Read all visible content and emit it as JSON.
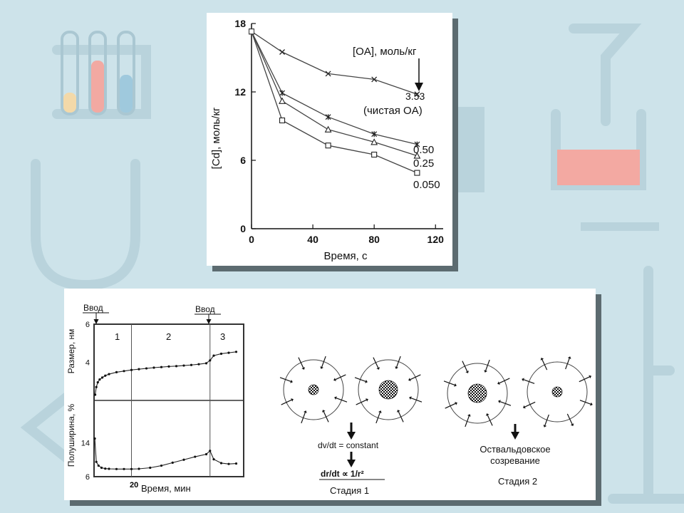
{
  "chart_data": [
    {
      "type": "line",
      "xlabel": "Время, с",
      "ylabel": "[Cd], моль/кг",
      "xlim": [
        0,
        125
      ],
      "ylim": [
        0,
        18
      ],
      "x_ticks": [
        "0",
        "40",
        "80",
        "120"
      ],
      "y_ticks": [
        "0",
        "6",
        "12",
        "18"
      ],
      "legend_title": "[OA], моль/кг",
      "series": [
        {
          "name": "3.53",
          "marker": "x",
          "x": [
            0,
            20,
            50,
            80,
            108
          ],
          "y": [
            17.3,
            15.5,
            13.6,
            13.1,
            11.8
          ]
        },
        {
          "name": "(чистая OA)",
          "marker": "none",
          "x": [],
          "y": []
        },
        {
          "name": "0.50",
          "marker": "star",
          "x": [
            0,
            20,
            50,
            80,
            108
          ],
          "y": [
            17.3,
            11.9,
            9.8,
            8.3,
            7.4
          ]
        },
        {
          "name": "0.25",
          "marker": "triangle",
          "x": [
            0,
            20,
            50,
            80,
            108
          ],
          "y": [
            17.3,
            11.2,
            8.7,
            7.6,
            6.4
          ]
        },
        {
          "name": "0.050",
          "marker": "square",
          "x": [
            0,
            20,
            50,
            80,
            108
          ],
          "y": [
            17.3,
            9.5,
            7.3,
            6.5,
            4.9
          ]
        }
      ]
    },
    {
      "type": "line",
      "xlabel": "Время, мин",
      "annotations": [
        "Ввод",
        "Ввод"
      ],
      "stages": [
        "1",
        "2",
        "3"
      ],
      "stage_bounds": [
        0,
        10,
        31,
        40
      ],
      "xlim": [
        0,
        40
      ],
      "subplots": [
        {
          "ylabel": "Размер, нм",
          "ylim": [
            2,
            6
          ],
          "y_ticks": [
            "6",
            "4"
          ],
          "series": [
            {
              "name": "",
              "x": [
                0.3,
                0.6,
                1,
                1.5,
                2.2,
                3,
                4,
                6,
                8,
                10,
                12,
                14,
                16,
                18,
                20,
                22,
                24,
                26,
                28,
                30,
                31,
                32,
                34,
                36,
                38
              ],
              "y": [
                2.3,
                2.7,
                2.95,
                3.1,
                3.2,
                3.3,
                3.38,
                3.48,
                3.54,
                3.6,
                3.64,
                3.68,
                3.72,
                3.75,
                3.78,
                3.8,
                3.83,
                3.86,
                3.9,
                3.95,
                4.1,
                4.35,
                4.45,
                4.5,
                4.55
              ]
            }
          ]
        },
        {
          "ylabel": "Полуширина, %",
          "ylim": [
            6,
            24
          ],
          "y_ticks": [
            "14",
            "6"
          ],
          "series": [
            {
              "name": "",
              "x": [
                0.2,
                0.6,
                1.2,
                2,
                3,
                4,
                6,
                8,
                10,
                12,
                15,
                18,
                21,
                24,
                27,
                30,
                31,
                32,
                34,
                36,
                38
              ],
              "y": [
                15,
                9.5,
                8.6,
                8.1,
                7.9,
                7.85,
                7.8,
                7.8,
                7.8,
                7.85,
                8.1,
                8.6,
                9.3,
                10,
                10.7,
                11.3,
                12.1,
                10.1,
                9.2,
                9.0,
                9.1
              ]
            }
          ]
        }
      ]
    }
  ],
  "diagram": {
    "stage1_label": "Стадия 1",
    "stage2_label": "Стадия 2",
    "equation_1": "dv/dt = constant",
    "equation_2": "dr/dt ∝ 1/r²",
    "ostwald_label_line1": "Оствальдовское",
    "ostwald_label_line2": "созревание"
  },
  "page_number": "20"
}
